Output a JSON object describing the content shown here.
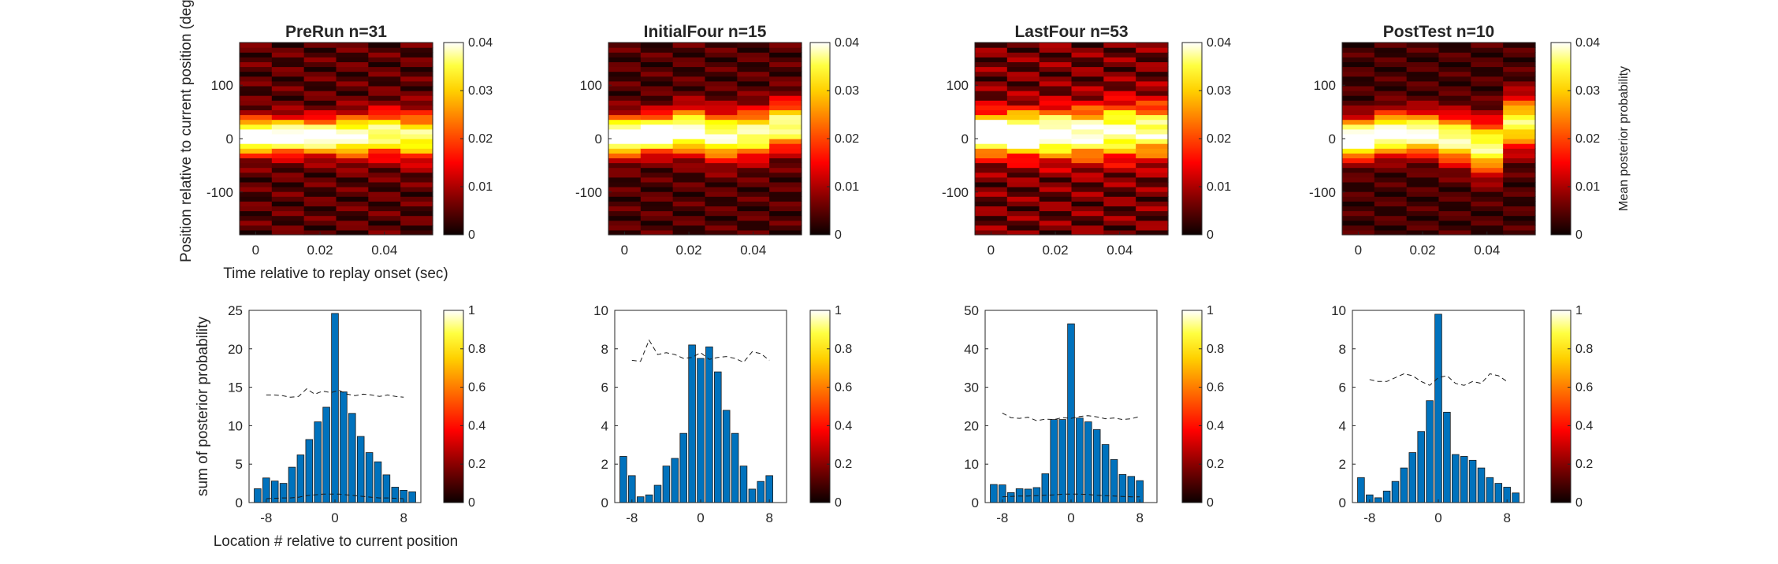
{
  "colors": {
    "bar_fill": "#0072BD",
    "bar_edge": "#1a1a1a",
    "axis": "#262626",
    "colormap": "hot"
  },
  "shared_labels": {
    "heatmap_ylabel": "Position relative to current position (deg)",
    "heatmap_xlabel": "Time relative to replay onset (sec)",
    "hist_ylabel": "sum of posterior probability",
    "hist_xlabel": "Location # relative to current position",
    "colorbar_label": "Mean posterior probability"
  },
  "chart_data": [
    {
      "type": "heatmap",
      "id": "prerun_heatmap",
      "title": "PreRun n=31",
      "x_time_bins": [
        0,
        0.01,
        0.02,
        0.03,
        0.04,
        0.05
      ],
      "xlim": [
        -0.005,
        0.055
      ],
      "xticks": [
        "0",
        "0.02",
        "0.04"
      ],
      "ylim": [
        -180,
        180
      ],
      "yticks": [
        "100",
        "0",
        "-100"
      ],
      "clim": [
        0,
        0.04
      ],
      "colorbar_ticks": [
        "0.04",
        "0.03",
        "0.02",
        "0.01",
        "0"
      ],
      "profile_centers": [
        5,
        5,
        5,
        5,
        10,
        5
      ],
      "profile_widths": [
        22,
        22,
        22,
        26,
        28,
        30
      ],
      "profile_peaks": [
        0.042,
        0.041,
        0.04,
        0.036,
        0.032,
        0.03
      ],
      "background": 0.008
    },
    {
      "type": "heatmap",
      "id": "initialfour_heatmap",
      "title": "InitialFour n=15",
      "x_time_bins": [
        0,
        0.01,
        0.02,
        0.03,
        0.04,
        0.05
      ],
      "xlim": [
        -0.005,
        0.055
      ],
      "xticks": [
        "0",
        "0.02",
        "0.04"
      ],
      "ylim": [
        -180,
        180
      ],
      "yticks": [
        "100",
        "0",
        "-100"
      ],
      "clim": [
        0,
        0.04
      ],
      "colorbar_ticks": [
        "0.04",
        "0.03",
        "0.02",
        "0.01",
        "0"
      ],
      "profile_centers": [
        5,
        10,
        15,
        5,
        10,
        25
      ],
      "profile_widths": [
        24,
        24,
        28,
        30,
        30,
        30
      ],
      "profile_peaks": [
        0.044,
        0.042,
        0.038,
        0.034,
        0.033,
        0.033
      ],
      "background": 0.007
    },
    {
      "type": "heatmap",
      "id": "lastfour_heatmap",
      "title": "LastFour n=53",
      "x_time_bins": [
        0,
        0.01,
        0.02,
        0.03,
        0.04,
        0.05
      ],
      "xlim": [
        -0.005,
        0.055
      ],
      "xticks": [
        "0",
        "0.02",
        "0.04"
      ],
      "ylim": [
        -180,
        180
      ],
      "yticks": [
        "100",
        "0",
        "-100"
      ],
      "clim": [
        0,
        0.04
      ],
      "colorbar_ticks": [
        "0.04",
        "0.03",
        "0.02",
        "0.01",
        "0"
      ],
      "profile_centers": [
        10,
        10,
        10,
        10,
        15,
        15
      ],
      "profile_widths": [
        26,
        28,
        30,
        32,
        34,
        34
      ],
      "profile_peaks": [
        0.044,
        0.042,
        0.039,
        0.035,
        0.033,
        0.031
      ],
      "background": 0.011
    },
    {
      "type": "heatmap",
      "id": "posttest_heatmap",
      "title": "PostTest n=10",
      "x_time_bins": [
        0,
        0.01,
        0.02,
        0.03,
        0.04,
        0.05
      ],
      "xlim": [
        -0.005,
        0.055
      ],
      "xticks": [
        "0",
        "0.02",
        "0.04"
      ],
      "ylim": [
        -180,
        180
      ],
      "yticks": [
        "100",
        "0",
        "-100"
      ],
      "clim": [
        0,
        0.04
      ],
      "colorbar_ticks": [
        "0.04",
        "0.03",
        "0.02",
        "0.01",
        "0"
      ],
      "profile_centers": [
        0,
        10,
        10,
        0,
        -15,
        30
      ],
      "profile_widths": [
        24,
        26,
        26,
        30,
        34,
        34
      ],
      "profile_peaks": [
        0.044,
        0.04,
        0.038,
        0.034,
        0.032,
        0.03
      ],
      "background": 0.006
    },
    {
      "type": "bar",
      "id": "prerun_hist",
      "x": [
        -9,
        -8,
        -7,
        -6,
        -5,
        -4,
        -3,
        -2,
        -1,
        0,
        1,
        2,
        3,
        4,
        5,
        6,
        7,
        8,
        9
      ],
      "values": [
        1.8,
        3.2,
        2.8,
        2.5,
        4.6,
        6.2,
        8.2,
        10.5,
        12.4,
        24.6,
        14.4,
        11.6,
        8.6,
        6.5,
        5.3,
        3.6,
        2.0,
        1.6,
        1.4
      ],
      "dashed_upper": [
        14,
        14,
        13.9,
        13.7,
        13.8,
        14.8,
        14.1,
        14.5,
        14.3,
        14.6,
        14.1,
        13.9,
        14.1,
        14.0,
        13.8,
        14.0,
        13.8,
        13.7
      ],
      "dashed_lower": [
        0.5,
        0.55,
        0.6,
        0.6,
        0.7,
        0.9,
        1.0,
        1.1,
        1.1,
        1.1,
        1.0,
        0.9,
        0.8,
        0.7,
        0.6,
        0.6,
        0.55,
        0.5
      ],
      "xlim": [
        -10,
        10
      ],
      "ylim": [
        0,
        25
      ],
      "xticks": [
        "-8",
        "0",
        "8"
      ],
      "yticks": [
        "0",
        "5",
        "10",
        "15",
        "20",
        "25"
      ],
      "colorbar_ticks": [
        "1",
        "0.8",
        "0.6",
        "0.4",
        "0.2",
        "0"
      ]
    },
    {
      "type": "bar",
      "id": "initialfour_hist",
      "x": [
        -9,
        -8,
        -7,
        -6,
        -5,
        -4,
        -3,
        -2,
        -1,
        0,
        1,
        2,
        3,
        4,
        5,
        6,
        7,
        8,
        9
      ],
      "values": [
        2.4,
        1.4,
        0.3,
        0.4,
        0.9,
        1.9,
        2.3,
        3.6,
        8.2,
        7.5,
        8.1,
        6.8,
        4.8,
        3.6,
        1.9,
        0.7,
        1.1,
        1.4,
        0
      ],
      "dashed_upper": [
        7.4,
        7.35,
        8.45,
        7.7,
        7.8,
        7.7,
        7.5,
        7.55,
        7.8,
        7.45,
        7.55,
        7.6,
        7.5,
        7.3,
        7.85,
        7.75,
        7.4
      ],
      "dashed_lower": [],
      "xlim": [
        -10,
        10
      ],
      "ylim": [
        0,
        10
      ],
      "xticks": [
        "-8",
        "0",
        "8"
      ],
      "yticks": [
        "0",
        "2",
        "4",
        "6",
        "8",
        "10"
      ],
      "colorbar_ticks": [
        "1",
        "0.8",
        "0.6",
        "0.4",
        "0.2",
        "0"
      ]
    },
    {
      "type": "bar",
      "id": "lastfour_hist",
      "x": [
        -9,
        -8,
        -7,
        -6,
        -5,
        -4,
        -3,
        -2,
        -1,
        0,
        1,
        2,
        3,
        4,
        5,
        6,
        7,
        8,
        9
      ],
      "values": [
        4.7,
        4.6,
        2.6,
        3.6,
        3.5,
        3.9,
        7.5,
        21.6,
        21.6,
        46.5,
        22.0,
        21.0,
        19.0,
        15.1,
        11.2,
        7.3,
        6.8,
        5.7,
        0
      ],
      "dashed_upper": [
        23.3,
        22.1,
        21.9,
        22.2,
        21.3,
        21.7,
        21.6,
        22.1,
        21.9,
        22.4,
        22.6,
        22.3,
        21.8,
        22.0,
        21.6,
        21.8,
        22.4
      ],
      "dashed_lower": [
        1.5,
        1.6,
        1.7,
        1.7,
        1.8,
        1.9,
        2.0,
        2.2,
        2.2,
        2.2,
        2.1,
        1.9,
        1.8,
        1.7,
        1.6,
        1.5,
        1.5
      ],
      "xlim": [
        -10,
        10
      ],
      "ylim": [
        0,
        50
      ],
      "xticks": [
        "-8",
        "0",
        "8"
      ],
      "yticks": [
        "0",
        "10",
        "20",
        "30",
        "40",
        "50"
      ],
      "colorbar_ticks": [
        "1",
        "0.8",
        "0.6",
        "0.4",
        "0.2",
        "0"
      ]
    },
    {
      "type": "bar",
      "id": "posttest_hist",
      "x": [
        -9,
        -8,
        -7,
        -6,
        -5,
        -4,
        -3,
        -2,
        -1,
        0,
        1,
        2,
        3,
        4,
        5,
        6,
        7,
        8,
        9
      ],
      "values": [
        1.3,
        0.4,
        0.25,
        0.6,
        1.1,
        1.8,
        2.6,
        3.7,
        5.3,
        9.8,
        4.7,
        2.5,
        2.4,
        2.2,
        1.8,
        1.3,
        1.0,
        0.8,
        0.5
      ],
      "dashed_upper": [
        6.4,
        6.3,
        6.3,
        6.5,
        6.7,
        6.6,
        6.3,
        6.1,
        6.5,
        6.6,
        6.2,
        6.1,
        6.3,
        6.2,
        6.7,
        6.6,
        6.3
      ],
      "dashed_lower": [],
      "xlim": [
        -10,
        10
      ],
      "ylim": [
        0,
        10
      ],
      "xticks": [
        "-8",
        "0",
        "8"
      ],
      "yticks": [
        "0",
        "2",
        "4",
        "6",
        "8",
        "10"
      ],
      "colorbar_ticks": [
        "1",
        "0.8",
        "0.6",
        "0.4",
        "0.2",
        "0"
      ]
    }
  ]
}
